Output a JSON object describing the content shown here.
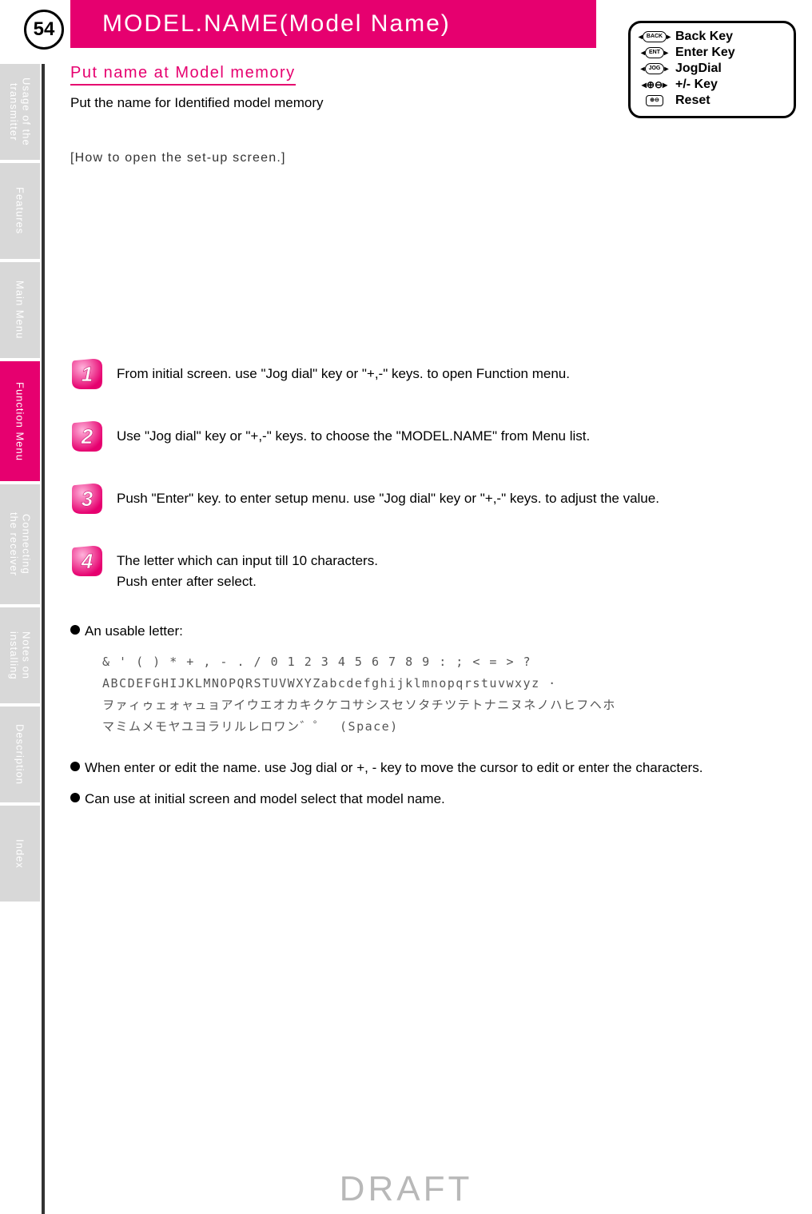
{
  "page_number": "54",
  "header": {
    "title": "MODEL.NAME(Model Name)"
  },
  "subtitle": "Put name at Model memory",
  "description": "Put the name for Identified model memory",
  "howto_label": "[How to open the set-up screen.]",
  "sidebar": {
    "tabs": [
      {
        "label": "Usage of the\ntransmitter",
        "active": false,
        "height": "short"
      },
      {
        "label": "Features",
        "active": false,
        "height": "short"
      },
      {
        "label": "Main Menu",
        "active": false,
        "height": "short"
      },
      {
        "label": "Function Menu",
        "active": true,
        "height": "normal"
      },
      {
        "label": "Connecting\nthe receiver",
        "active": false,
        "height": "normal"
      },
      {
        "label": "Notes on\ninstalling",
        "active": false,
        "height": "short"
      },
      {
        "label": "Description",
        "active": false,
        "height": "short"
      },
      {
        "label": "Index",
        "active": false,
        "height": "short"
      }
    ]
  },
  "key_legend": [
    {
      "icon": "BACK",
      "label": "Back Key"
    },
    {
      "icon": "ENT",
      "label": "Enter Key"
    },
    {
      "icon": "JOG",
      "label": "JogDial"
    },
    {
      "icon": "+/-",
      "label": "+/- Key"
    },
    {
      "icon": "⊕⊕",
      "label": "Reset"
    }
  ],
  "steps": [
    {
      "n": "1",
      "text": "From initial screen. use \"Jog dial\" key or \"+,-\" keys. to open Function menu."
    },
    {
      "n": "2",
      "text": "Use \"Jog dial\" key or \"+,-\" keys. to choose the \"MODEL.NAME\" from Menu list."
    },
    {
      "n": "3",
      "text": "Push \"Enter\" key. to enter setup menu. use \"Jog dial\" key or \"+,-\" keys. to adjust the value."
    },
    {
      "n": "4",
      "text": "The letter which can input till 10 characters.\nPush enter after select."
    }
  ],
  "usable_letter_label": "An usable letter:",
  "usable_letters": "& ' ( ) * + , - . / 0 1 2 3 4 5 6 7 8 9 : ; < = > ?\nABCDEFGHIJKLMNOPQRSTUVWXYZabcdefghijklmnopqrstuvwxyz ·\nヲァィゥェォャュョアイウエオカキクケコサシスセソタチツテトナニヌネノハヒフヘホ\nマミムメモヤユヨラリルレロワン゛゜　(Space)",
  "bullets": [
    "When enter or edit the name. use Jog dial or +, - key to move the cursor to edit or enter the characters.",
    "Can use at initial screen and model select that model name."
  ],
  "watermark": "DRAFT",
  "colors": {
    "pink": "#e6006f",
    "tab_inactive": "#d8d8d8",
    "draft_gray": "#b8b8b8"
  }
}
